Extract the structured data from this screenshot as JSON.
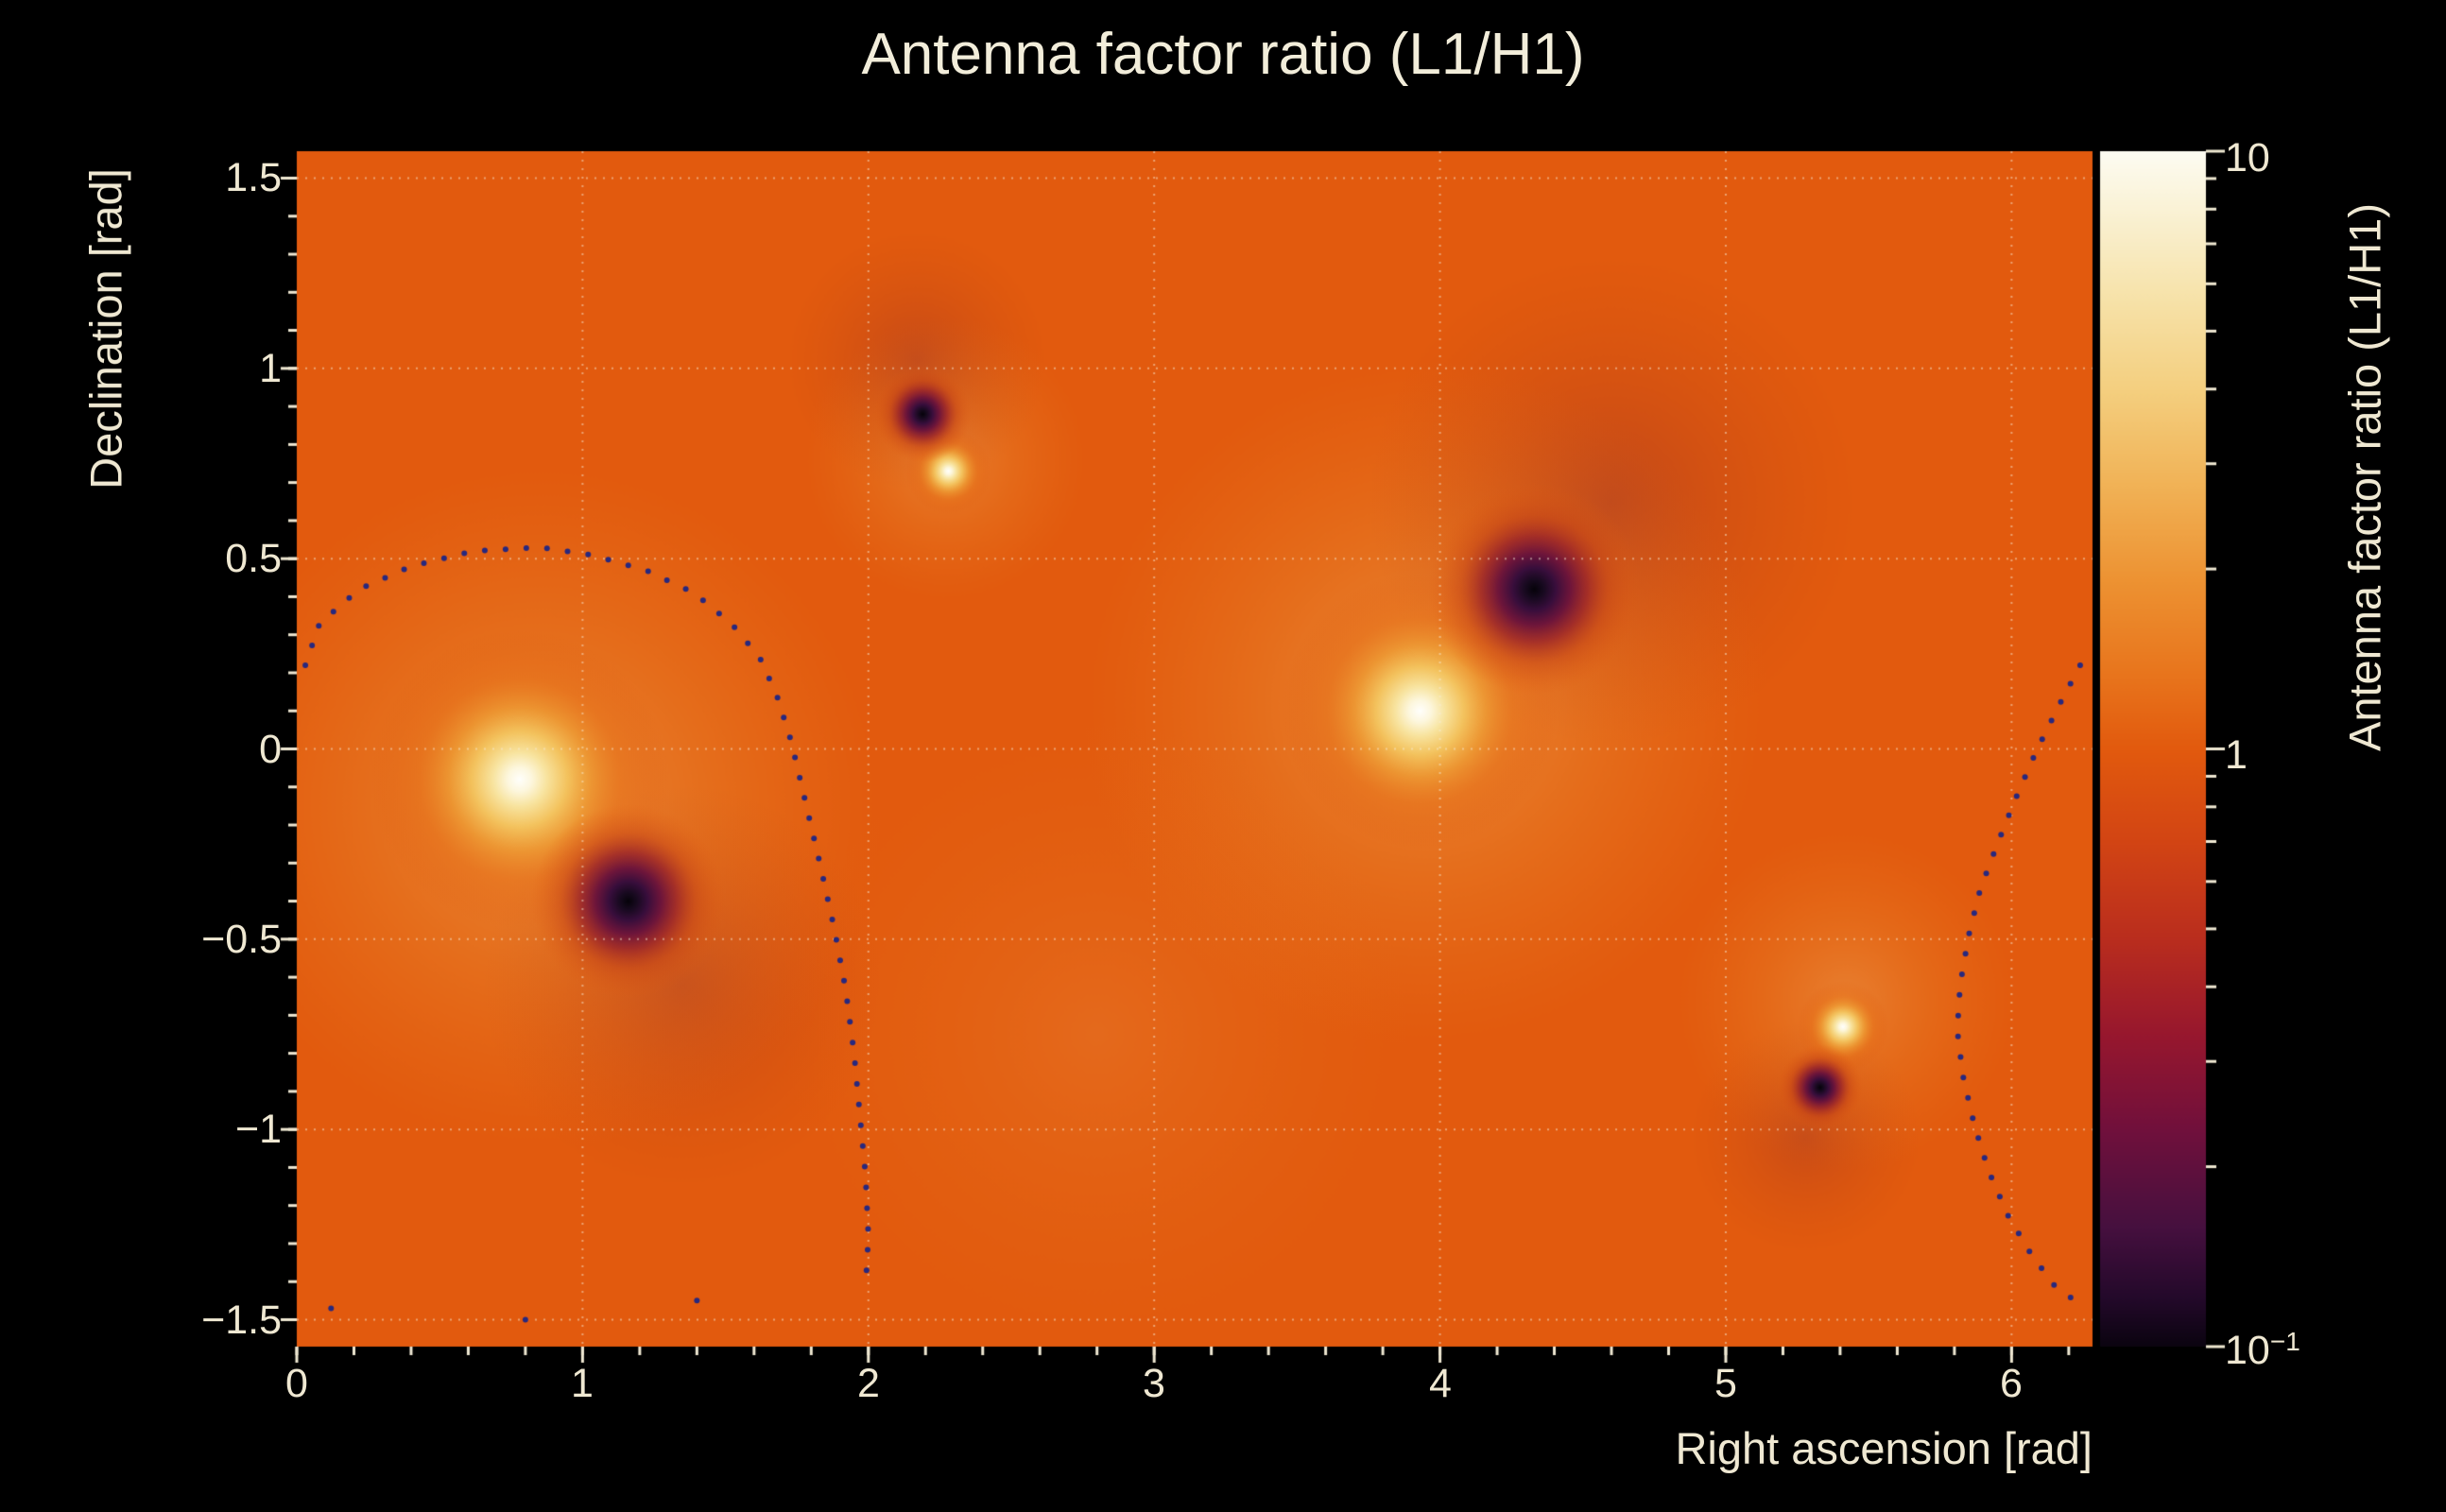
{
  "title": "Antenna factor ratio (L1/H1)",
  "text_color": "#efe8d2",
  "chart_data": {
    "type": "heatmap",
    "title": "Antenna factor ratio (L1/H1)",
    "xlabel": "Right ascension [rad]",
    "ylabel": "Declination [rad]",
    "zlabel": "Antenna factor ratio (L1/H1)",
    "x_range": [
      0,
      6.2832
    ],
    "y_range": [
      -1.5708,
      1.5708
    ],
    "z_range": [
      0.1,
      10
    ],
    "z_scale": "log10",
    "base_value": 1.0,
    "base_color": "#e25a0e",
    "tick_color": "#efe8d2",
    "x_minor_step": 0.2,
    "y_minor_step": 0.1,
    "x_ticks": {
      "values": [
        0,
        1,
        2,
        3,
        4,
        5,
        6
      ],
      "labels": [
        "0",
        "1",
        "2",
        "3",
        "4",
        "5",
        "6"
      ]
    },
    "y_ticks": {
      "values": [
        1.5,
        1,
        0.5,
        0,
        -0.5,
        -1,
        -1.5
      ],
      "labels": [
        "1.5",
        "1",
        "0.5",
        "0",
        "−0.5",
        "−1",
        "−1.5"
      ]
    },
    "grid": {
      "color": "rgba(247,238,216,0.5)",
      "x": [
        1,
        2,
        3,
        4,
        5,
        6
      ],
      "y": [
        -1.5,
        -1,
        -0.5,
        0,
        0.5,
        1,
        1.5
      ]
    },
    "colorbar": {
      "tick_labels": [
        {
          "base": "10",
          "exp": "",
          "value": 10
        },
        {
          "base": "1",
          "exp": "",
          "value": 1
        },
        {
          "base": "10",
          "exp": "−1",
          "value": 0.1
        }
      ],
      "gradient": [
        [
          0,
          "#fdfcf2"
        ],
        [
          0.05,
          "#faf2d5"
        ],
        [
          0.12,
          "#f7e3ab"
        ],
        [
          0.2,
          "#f4cf7f"
        ],
        [
          0.28,
          "#f1b256"
        ],
        [
          0.36,
          "#ed9232"
        ],
        [
          0.44,
          "#e8741c"
        ],
        [
          0.5,
          "#e25a0e"
        ],
        [
          0.58,
          "#d24414"
        ],
        [
          0.66,
          "#b92d1e"
        ],
        [
          0.74,
          "#97172e"
        ],
        [
          0.82,
          "#70103c"
        ],
        [
          0.9,
          "#46103f"
        ],
        [
          0.96,
          "#23092a"
        ],
        [
          1,
          "#0b0410"
        ]
      ]
    },
    "bright_spots": [
      {
        "ra": 0.78,
        "dec": -0.08,
        "r": 0.52
      },
      {
        "ra": 3.93,
        "dec": 0.1,
        "r": 0.48
      },
      {
        "ra": 2.28,
        "dec": 0.73,
        "r": 0.15
      },
      {
        "ra": 5.41,
        "dec": -0.73,
        "r": 0.16
      }
    ],
    "dark_spots": [
      {
        "ra": 1.16,
        "dec": -0.4,
        "r": 0.34
      },
      {
        "ra": 4.33,
        "dec": 0.42,
        "r": 0.37
      },
      {
        "ra": 2.19,
        "dec": 0.88,
        "r": 0.17
      },
      {
        "ra": 5.33,
        "dec": -0.89,
        "r": 0.15
      }
    ],
    "halos": [
      {
        "type": "bright_halo",
        "ra": 0.85,
        "dec": -0.15,
        "r": 1.2,
        "alpha": 0.8
      },
      {
        "type": "bright_halo",
        "ra": 3.95,
        "dec": 0.12,
        "r": 1.2,
        "alpha": 0.8
      },
      {
        "type": "bright_halo",
        "ra": 2.27,
        "dec": 0.76,
        "r": 0.5,
        "alpha": 0.6
      },
      {
        "type": "bright_halo",
        "ra": 5.42,
        "dec": -0.66,
        "r": 0.6,
        "alpha": 0.6
      },
      {
        "type": "bright_halo",
        "ra": 2.8,
        "dec": -0.75,
        "r": 1.1,
        "alpha": 0.25
      },
      {
        "type": "dark_halo",
        "ra": 4.6,
        "dec": 0.65,
        "r": 0.85,
        "alpha": 0.55
      },
      {
        "type": "dark_halo",
        "ra": 1.35,
        "dec": -0.62,
        "r": 0.7,
        "alpha": 0.45
      },
      {
        "type": "dark_halo",
        "ra": 2.17,
        "dec": 1.02,
        "r": 0.45,
        "alpha": 0.5
      },
      {
        "type": "dark_halo",
        "ra": 5.28,
        "dec": -1.02,
        "r": 0.4,
        "alpha": 0.45
      }
    ],
    "palettes": {
      "bright_spot": [
        [
          0,
          "rgba(255,255,252,1)"
        ],
        [
          0.08,
          "rgba(253,247,222,1)"
        ],
        [
          0.18,
          "rgba(248,228,160,1)"
        ],
        [
          0.32,
          "rgba(244,198,96,0.95)"
        ],
        [
          0.48,
          "rgba(238,156,52,0.8)"
        ],
        [
          0.68,
          "rgba(232,116,26,0.45)"
        ],
        [
          1,
          "rgba(226,90,14,0)"
        ]
      ],
      "dark_spot": [
        [
          0,
          "rgba(6,3,10,1)"
        ],
        [
          0.09,
          "rgba(24,10,32,1)"
        ],
        [
          0.2,
          "rgba(56,14,60,1)"
        ],
        [
          0.34,
          "rgba(104,17,60,0.95)"
        ],
        [
          0.5,
          "rgba(152,34,42,0.8)"
        ],
        [
          0.7,
          "rgba(196,64,22,0.45)"
        ],
        [
          1,
          "rgba(226,90,14,0)"
        ]
      ],
      "bright_halo": [
        [
          0,
          "rgba(247,205,120,0.55)"
        ],
        [
          0.5,
          "rgba(240,170,70,0.3)"
        ],
        [
          1,
          "rgba(238,150,50,0)"
        ]
      ],
      "dark_halo": [
        [
          0,
          "rgba(110,22,54,0.5)"
        ],
        [
          0.5,
          "rgba(140,40,40,0.25)"
        ],
        [
          1,
          "rgba(160,60,30,0)"
        ]
      ]
    },
    "contours": {
      "color": "#28287e",
      "dot_radius": 3,
      "spacing": 22,
      "segments": [
        [
          [
            0.03,
            0.22
          ],
          [
            0.08,
            0.33
          ],
          [
            0.22,
            0.42
          ],
          [
            0.4,
            0.48
          ],
          [
            0.62,
            0.52
          ],
          [
            0.85,
            0.53
          ],
          [
            1.03,
            0.51
          ],
          [
            1.22,
            0.47
          ],
          [
            1.39,
            0.41
          ],
          [
            1.52,
            0.33
          ],
          [
            1.62,
            0.24
          ],
          [
            1.68,
            0.14
          ],
          [
            1.73,
            0.02
          ],
          [
            1.78,
            -0.14
          ],
          [
            1.83,
            -0.3
          ],
          [
            1.88,
            -0.47
          ],
          [
            1.92,
            -0.63
          ],
          [
            1.95,
            -0.8
          ],
          [
            1.97,
            -0.96
          ],
          [
            1.99,
            -1.12
          ],
          [
            2.0,
            -1.28
          ],
          [
            1.99,
            -1.42
          ]
        ],
        [
          [
            6.24,
            0.22
          ],
          [
            6.17,
            0.12
          ],
          [
            6.09,
            0.0
          ],
          [
            6.02,
            -0.12
          ],
          [
            5.95,
            -0.25
          ],
          [
            5.89,
            -0.37
          ],
          [
            5.85,
            -0.49
          ],
          [
            5.82,
            -0.62
          ],
          [
            5.81,
            -0.74
          ],
          [
            5.83,
            -0.86
          ],
          [
            5.87,
            -0.99
          ],
          [
            5.92,
            -1.11
          ],
          [
            5.99,
            -1.23
          ],
          [
            6.07,
            -1.33
          ],
          [
            6.15,
            -1.41
          ],
          [
            6.24,
            -1.46
          ]
        ]
      ],
      "dots": [
        [
          0.12,
          -1.47
        ],
        [
          0.8,
          -1.5
        ],
        [
          1.4,
          -1.45
        ]
      ]
    }
  }
}
